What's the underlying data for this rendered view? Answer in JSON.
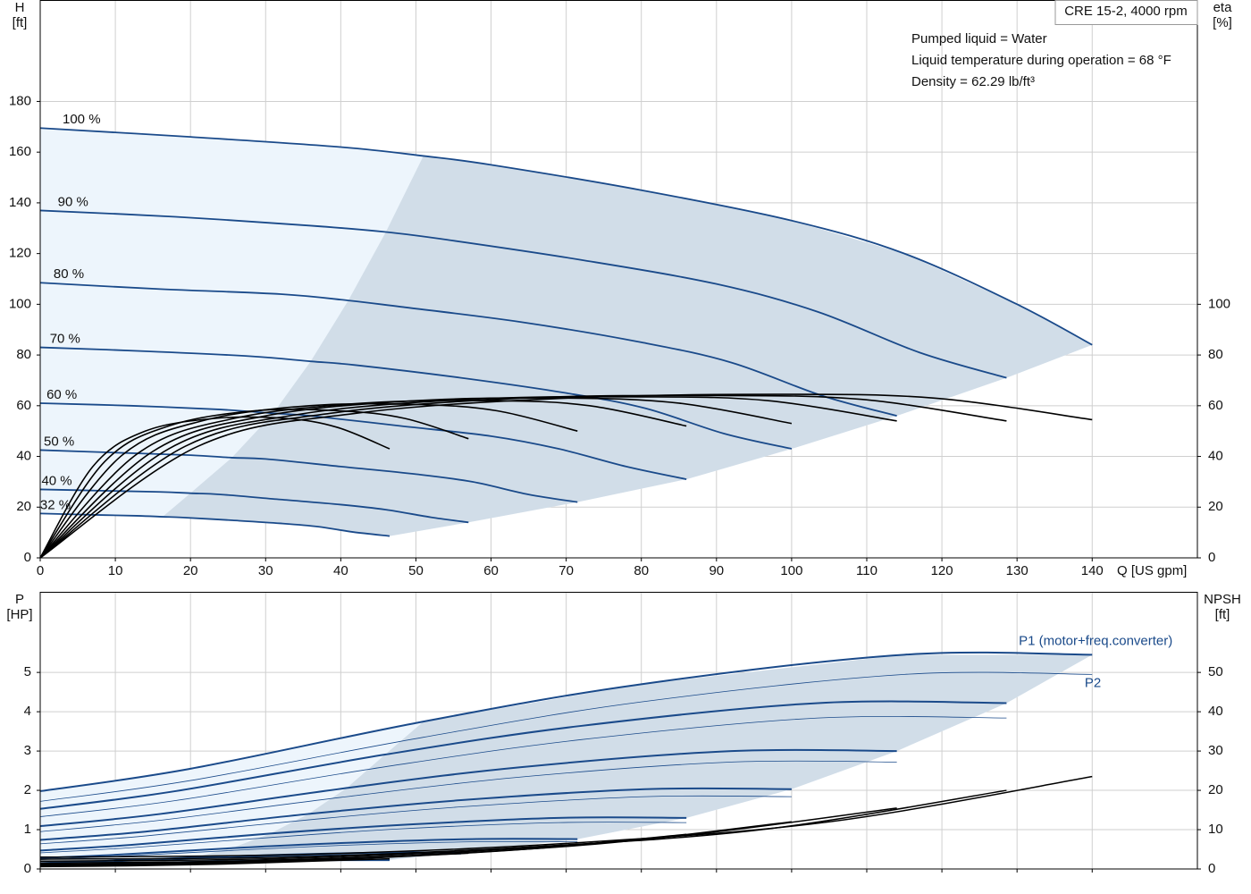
{
  "chart_data": [
    {
      "type": "line",
      "title": "CRE 15-2, 4000 rpm",
      "annotations": [
        "Pumped liquid = Water",
        "Liquid temperature during operation = 68 °F",
        "Density = 62.29 lb/ft³"
      ],
      "x_label": "Q [US gpm]",
      "y_label": [
        "H",
        "[ft]"
      ],
      "y2_label": [
        "eta",
        "[%]"
      ],
      "xlim": [
        0,
        154
      ],
      "xticks": [
        0,
        10,
        20,
        30,
        40,
        50,
        60,
        70,
        80,
        90,
        100,
        110,
        120,
        130,
        140
      ],
      "ylim": [
        0,
        220
      ],
      "yticks": [
        0,
        20,
        40,
        60,
        80,
        100,
        120,
        140,
        160,
        180
      ],
      "y2lim": [
        0,
        220
      ],
      "y2ticks": [
        0,
        20,
        40,
        60,
        80,
        100
      ],
      "grid": true,
      "region_series": [
        0,
        1,
        2,
        3,
        4,
        5,
        6,
        7
      ],
      "operating_range_start": 3,
      "region_colors": [
        "#edf5fc",
        "#d1dde8"
      ],
      "series": [
        {
          "name": "100 %",
          "color": "#1a4a8a",
          "width": 1.8,
          "x": [
            0,
            20,
            40,
            51,
            60,
            80,
            100,
            115,
            130,
            140
          ],
          "values": [
            169.5,
            166,
            162,
            158.5,
            155,
            145,
            133,
            120,
            100,
            84
          ]
        },
        {
          "name": "90 %",
          "color": "#1a4a8a",
          "width": 1.8,
          "x": [
            0,
            18,
            36,
            46,
            54,
            72,
            90,
            103.5,
            117,
            128.6
          ],
          "values": [
            137,
            134.5,
            131,
            128.5,
            125.5,
            117.5,
            108,
            97,
            81,
            71
          ]
        },
        {
          "name": "80 %",
          "color": "#1a4a8a",
          "width": 1.8,
          "x": [
            0,
            16,
            32,
            41,
            48,
            64,
            80,
            92,
            104,
            114
          ],
          "values": [
            108.5,
            106,
            104,
            101.5,
            99,
            93,
            85,
            77,
            64,
            56
          ]
        },
        {
          "name": "70 %",
          "color": "#1a4a8a",
          "width": 1.8,
          "x": [
            0,
            14,
            28,
            36,
            42,
            56,
            70,
            80.5,
            91,
            100
          ],
          "values": [
            83,
            81.5,
            79.5,
            77.5,
            76,
            71,
            65,
            59,
            49,
            43
          ]
        },
        {
          "name": "60 %",
          "color": "#1a4a8a",
          "width": 1.8,
          "x": [
            0,
            12,
            24,
            31,
            36,
            48,
            60,
            69,
            78,
            86
          ],
          "values": [
            61,
            60,
            58.5,
            57,
            56,
            52,
            48,
            43,
            36,
            31
          ]
        },
        {
          "name": "50 %",
          "color": "#1a4a8a",
          "width": 1.8,
          "x": [
            0,
            10,
            20,
            25.5,
            30,
            40,
            50,
            57.5,
            65,
            71.5
          ],
          "values": [
            42.5,
            41.5,
            40.5,
            39.5,
            39,
            36,
            33,
            30,
            25,
            22
          ]
        },
        {
          "name": "40 %",
          "color": "#1a4a8a",
          "width": 1.8,
          "x": [
            0,
            8,
            16,
            20,
            24,
            32,
            40,
            46,
            52,
            57
          ],
          "values": [
            27,
            26.5,
            26,
            25.5,
            25,
            23,
            21,
            19,
            16,
            14
          ]
        },
        {
          "name": "32 %",
          "color": "#1a4a8a",
          "width": 1.8,
          "x": [
            0,
            6.4,
            12.8,
            16.3,
            19,
            25.6,
            32,
            37,
            41.6,
            46.5
          ],
          "values": [
            17.5,
            17,
            16.6,
            16.2,
            15.9,
            14.8,
            13.6,
            12.3,
            10.2,
            8.6
          ]
        },
        {
          "axis": "y2",
          "color": "#000000",
          "width": 1.6,
          "x": [
            0,
            21,
            42,
            70,
            98,
            119,
            140
          ],
          "values": [
            0,
            44,
            57,
            63,
            64.5,
            63,
            54.5
          ]
        },
        {
          "axis": "y2",
          "color": "#000000",
          "width": 1.6,
          "x": [
            0,
            19.3,
            38.6,
            64.3,
            90,
            109.3,
            128.6
          ],
          "values": [
            0,
            44,
            57,
            63,
            64,
            62.5,
            54
          ]
        },
        {
          "axis": "y2",
          "color": "#000000",
          "width": 1.6,
          "x": [
            0,
            17.1,
            34.2,
            57,
            79.8,
            96.9,
            114
          ],
          "values": [
            0,
            43,
            56.5,
            62.5,
            63.5,
            62,
            54
          ]
        },
        {
          "axis": "y2",
          "color": "#000000",
          "width": 1.6,
          "x": [
            0,
            15,
            30,
            50,
            70,
            85,
            100
          ],
          "values": [
            0,
            42,
            56,
            62,
            63,
            61,
            53
          ]
        },
        {
          "axis": "y2",
          "color": "#000000",
          "width": 1.6,
          "x": [
            0,
            12.9,
            25.8,
            43,
            60.2,
            73.1,
            86
          ],
          "values": [
            0,
            41,
            55,
            61,
            62,
            60,
            52
          ]
        },
        {
          "axis": "y2",
          "color": "#000000",
          "width": 1.6,
          "x": [
            0,
            10.7,
            21.5,
            35.8,
            50,
            60.8,
            71.5
          ],
          "values": [
            0,
            40,
            54,
            60,
            60.5,
            58,
            50
          ]
        },
        {
          "axis": "y2",
          "color": "#000000",
          "width": 1.6,
          "x": [
            0,
            8.6,
            17.1,
            28.5,
            39.9,
            48.5,
            57
          ],
          "values": [
            0,
            38,
            52,
            58,
            58,
            55,
            47
          ]
        },
        {
          "axis": "y2",
          "color": "#000000",
          "width": 1.6,
          "x": [
            0,
            7,
            14,
            23.3,
            32.6,
            39.5,
            46.5
          ],
          "values": [
            0,
            36,
            50,
            55,
            55,
            51.5,
            43
          ]
        }
      ]
    },
    {
      "type": "line",
      "y_label": [
        "P",
        "[HP]"
      ],
      "y2_label": [
        "NPSH",
        "[ft]"
      ],
      "xlim": [
        0,
        154
      ],
      "xticks": [
        0,
        10,
        20,
        30,
        40,
        50,
        60,
        70,
        80,
        90,
        100,
        110,
        120,
        130,
        140
      ],
      "show_xtick_labels": false,
      "ylim": [
        0,
        7.05
      ],
      "yticks": [
        0,
        1,
        2,
        3,
        4,
        5
      ],
      "y2lim": [
        0,
        70.5
      ],
      "y2ticks": [
        0,
        10,
        20,
        30,
        40,
        50
      ],
      "grid": true,
      "region_series": [
        0,
        1,
        2,
        3,
        4,
        5,
        6,
        7
      ],
      "operating_range_start": 2,
      "region_colors": [
        "#edf5fc",
        "#d1dde8"
      ],
      "series": [
        {
          "name": "P1 (motor+freq.converter)",
          "color": "#1a4a8a",
          "width": 2,
          "x": [
            0,
            20,
            51,
            80,
            115,
            140
          ],
          "values": [
            1.98,
            2.55,
            3.75,
            4.7,
            5.45,
            5.45
          ]
        },
        {
          "color": "#1a4a8a",
          "width": 2,
          "x": [
            0,
            18,
            45.9,
            72,
            103.5,
            128.6
          ],
          "values": [
            1.53,
            1.98,
            2.91,
            3.64,
            4.22,
            4.22
          ]
        },
        {
          "color": "#1a4a8a",
          "width": 2,
          "x": [
            0,
            16,
            40.8,
            64,
            92,
            114
          ],
          "values": [
            1.09,
            1.4,
            2.06,
            2.59,
            3.0,
            3.0
          ]
        },
        {
          "color": "#1a4a8a",
          "width": 2,
          "x": [
            0,
            14,
            35.7,
            56,
            80.5,
            100
          ],
          "values": [
            0.74,
            0.95,
            1.4,
            1.75,
            2.03,
            2.03
          ]
        },
        {
          "color": "#1a4a8a",
          "width": 2,
          "x": [
            0,
            12,
            30.6,
            48,
            69,
            86
          ],
          "values": [
            0.47,
            0.61,
            0.9,
            1.12,
            1.3,
            1.3
          ]
        },
        {
          "color": "#1a4a8a",
          "width": 2,
          "x": [
            0,
            10,
            25.5,
            40,
            57.5,
            71.5
          ],
          "values": [
            0.28,
            0.36,
            0.53,
            0.66,
            0.76,
            0.76
          ]
        },
        {
          "color": "#1a4a8a",
          "width": 2,
          "x": [
            0,
            8,
            20.4,
            32,
            46,
            56
          ],
          "values": [
            0.15,
            0.2,
            0.29,
            0.36,
            0.42,
            0.42
          ]
        },
        {
          "color": "#1a4a8a",
          "width": 2,
          "x": [
            0,
            6.4,
            16.3,
            25.6,
            36.8,
            46.5
          ],
          "values": [
            0.08,
            0.11,
            0.16,
            0.2,
            0.23,
            0.23
          ]
        },
        {
          "name": "P2",
          "color": "#1a4a8a",
          "width": 0.8,
          "x": [
            0,
            20,
            51,
            80,
            115,
            140
          ],
          "values": [
            1.72,
            2.25,
            3.35,
            4.25,
            4.95,
            4.95
          ]
        },
        {
          "color": "#1a4a8a",
          "width": 0.8,
          "x": [
            0,
            18,
            45.9,
            72,
            103.5,
            128.6
          ],
          "values": [
            1.33,
            1.74,
            2.6,
            3.29,
            3.84,
            3.84
          ]
        },
        {
          "color": "#1a4a8a",
          "width": 0.8,
          "x": [
            0,
            16,
            40.8,
            64,
            92,
            114
          ],
          "values": [
            0.95,
            1.24,
            1.84,
            2.34,
            2.72,
            2.72
          ]
        },
        {
          "color": "#1a4a8a",
          "width": 0.8,
          "x": [
            0,
            14,
            35.7,
            56,
            80.5,
            100
          ],
          "values": [
            0.64,
            0.84,
            1.25,
            1.58,
            1.84,
            1.84
          ]
        },
        {
          "color": "#1a4a8a",
          "width": 0.8,
          "x": [
            0,
            12,
            30.6,
            48,
            69,
            86
          ],
          "values": [
            0.41,
            0.54,
            0.8,
            1.02,
            1.18,
            1.18
          ]
        },
        {
          "color": "#1a4a8a",
          "width": 0.8,
          "x": [
            0,
            10,
            25.5,
            40,
            57.5,
            71.5
          ],
          "values": [
            0.24,
            0.32,
            0.47,
            0.6,
            0.69,
            0.69
          ]
        },
        {
          "color": "#1a4a8a",
          "width": 0.8,
          "x": [
            0,
            8,
            20.4,
            32,
            46,
            56
          ],
          "values": [
            0.13,
            0.17,
            0.26,
            0.33,
            0.38,
            0.38
          ]
        },
        {
          "color": "#1a4a8a",
          "width": 0.8,
          "x": [
            0,
            6.4,
            16.3,
            25.6,
            36.8,
            46.5
          ],
          "values": [
            0.07,
            0.09,
            0.14,
            0.18,
            0.21,
            0.21
          ]
        },
        {
          "axis": "y2",
          "color": "#000000",
          "width": 1.5,
          "x": [
            0,
            35,
            70,
            105,
            140
          ],
          "values": [
            3,
            3.7,
            6.5,
            12,
            23.5
          ]
        },
        {
          "axis": "y2",
          "color": "#000000",
          "width": 1.5,
          "x": [
            0,
            32,
            64,
            96,
            128.6
          ],
          "values": [
            2.5,
            3,
            5.5,
            10,
            20
          ]
        },
        {
          "axis": "y2",
          "color": "#000000",
          "width": 1.5,
          "x": [
            0,
            28.5,
            57,
            85.5,
            114
          ],
          "values": [
            2,
            2.5,
            4.5,
            8.5,
            15.5
          ]
        },
        {
          "axis": "y2",
          "color": "#000000",
          "width": 1.5,
          "x": [
            0,
            25,
            50,
            75,
            100
          ],
          "values": [
            1.5,
            2,
            3.5,
            6.5,
            12
          ]
        },
        {
          "axis": "y2",
          "color": "#000000",
          "width": 1.5,
          "x": [
            0,
            21.5,
            43,
            64.5,
            86
          ],
          "values": [
            1.2,
            1.6,
            2.8,
            5,
            8.8
          ]
        },
        {
          "axis": "y2",
          "color": "#000000",
          "width": 1.5,
          "x": [
            0,
            18,
            36,
            54,
            71.5
          ],
          "values": [
            1,
            1.3,
            2.2,
            3.8,
            6
          ]
        },
        {
          "axis": "y2",
          "color": "#000000",
          "width": 1.5,
          "x": [
            0,
            14,
            28.5,
            43,
            57
          ],
          "values": [
            0.8,
            1,
            1.6,
            2.7,
            4
          ]
        },
        {
          "axis": "y2",
          "color": "#000000",
          "width": 1.5,
          "x": [
            0,
            11.6,
            23.3,
            35,
            46.5
          ],
          "values": [
            0.6,
            0.8,
            1.2,
            1.9,
            2.6
          ]
        }
      ]
    }
  ]
}
